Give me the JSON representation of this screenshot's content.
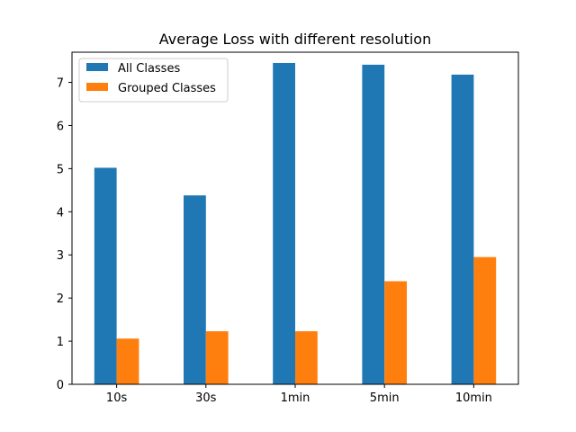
{
  "chart_data": {
    "type": "bar",
    "title": "Average Loss with different resolution",
    "xlabel": "",
    "ylabel": "",
    "categories": [
      "10s",
      "30s",
      "1min",
      "5min",
      "10min"
    ],
    "series": [
      {
        "name": "All Classes",
        "color": "#1f77b4",
        "values": [
          5.02,
          4.38,
          7.45,
          7.41,
          7.18
        ]
      },
      {
        "name": "Grouped Classes",
        "color": "#ff7f0e",
        "values": [
          1.06,
          1.23,
          1.23,
          2.39,
          2.95
        ]
      }
    ],
    "ylim": [
      0,
      7.7
    ],
    "yticks": [
      0,
      1,
      2,
      3,
      4,
      5,
      6,
      7
    ],
    "grid": false,
    "legend_position": "top-left"
  }
}
